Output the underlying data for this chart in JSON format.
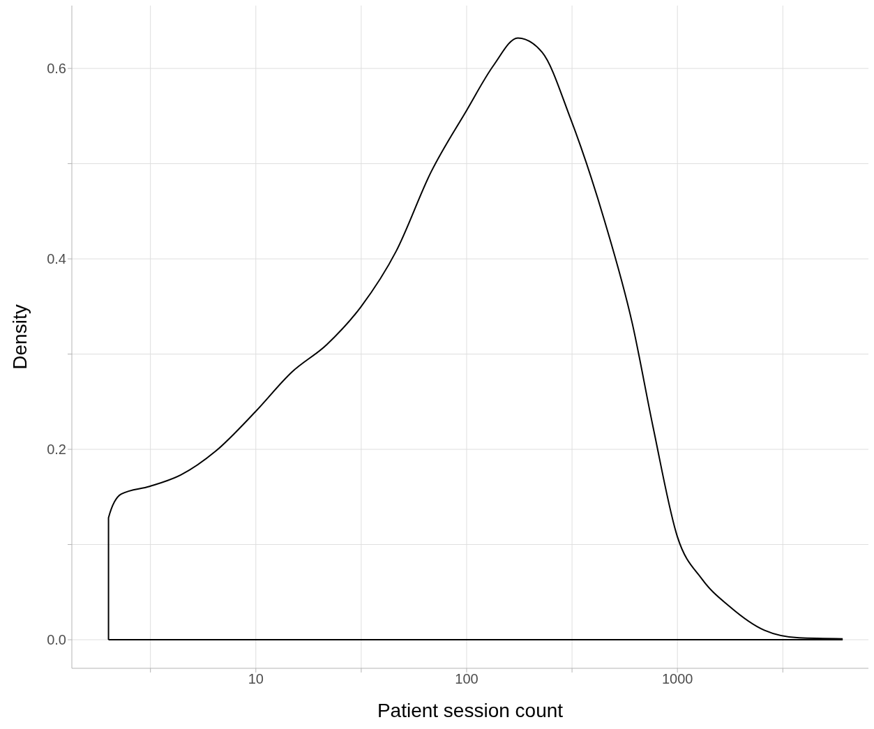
{
  "chart_data": {
    "type": "line",
    "xlabel": "Patient session count",
    "ylabel": "Density",
    "log": "x",
    "grid": true,
    "xlim": [
      1.34,
      8054
    ],
    "ylim": [
      -0.03,
      0.666
    ],
    "xticks": [
      {
        "value": 3.162,
        "label": null
      },
      10,
      {
        "value": 31.62,
        "label": null
      },
      100,
      {
        "value": 316.2,
        "label": null
      },
      1000,
      {
        "value": 3162,
        "label": null
      }
    ],
    "yticks": [
      {
        "value": 0,
        "label": "0.0"
      },
      {
        "value": 0.1,
        "label": null
      },
      0.2,
      {
        "value": 0.3,
        "label": null
      },
      0.4,
      {
        "value": 0.5,
        "label": null
      },
      0.6
    ],
    "series": [
      {
        "color": "#000000",
        "x": [
          2,
          2,
          2.3,
          3.13,
          4.4,
          6.44,
          10,
          14.8,
          21.7,
          31.6,
          46.3,
          67.7,
          100,
          134,
          175,
          228,
          309,
          451,
          611,
          767,
          1000,
          1304,
          1766,
          2582,
          3776,
          6081
        ],
        "values": [
          0,
          0.128,
          0.153,
          0.161,
          0.173,
          0.198,
          0.24,
          0.281,
          0.31,
          0.35,
          0.408,
          0.491,
          0.556,
          0.603,
          0.632,
          0.617,
          0.549,
          0.44,
          0.332,
          0.223,
          0.108,
          0.064,
          0.035,
          0.01,
          0.002,
          0.001
        ]
      }
    ]
  }
}
